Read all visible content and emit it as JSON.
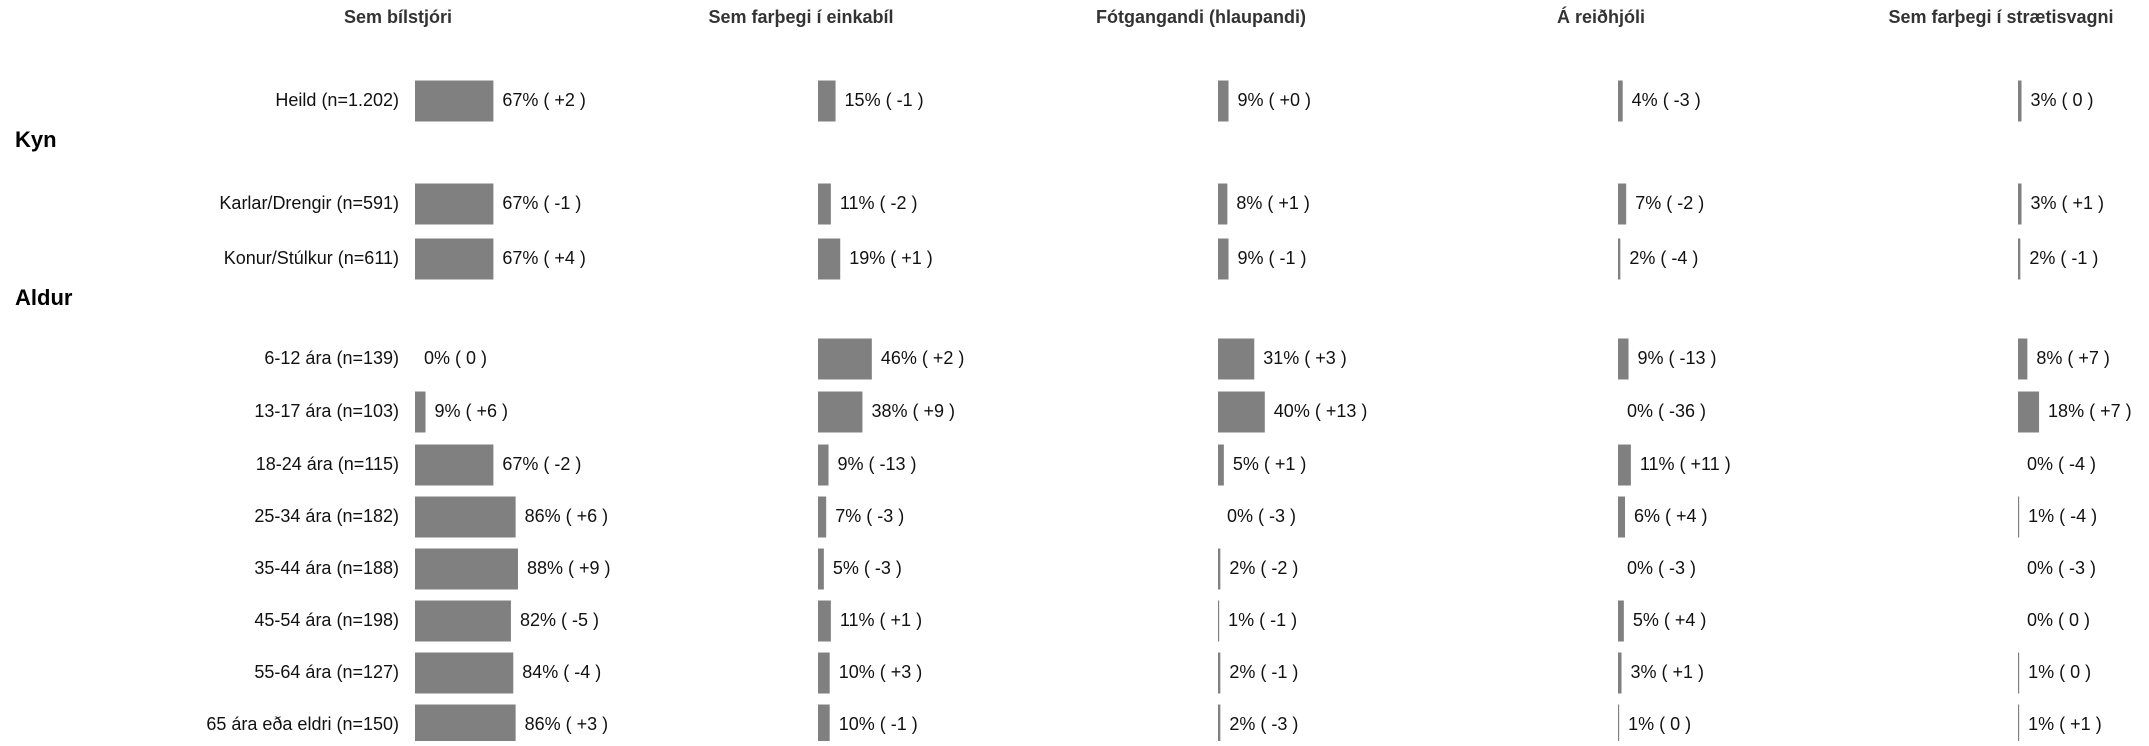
{
  "chart_data": {
    "type": "bar",
    "xlim": [
      0,
      100
    ],
    "categories": [
      "Heild (n=1.202)",
      {
        "group": "Kyn"
      },
      "Karlar/Drengir (n=591)",
      "Konur/Stúlkur (n=611)",
      {
        "group": "Aldur"
      },
      "6-12 ára (n=139)",
      "13-17 ára (n=103)",
      "18-24 ára (n=115)",
      "25-34 ára (n=182)",
      "35-44 ára (n=188)",
      "45-54 ára (n=198)",
      "55-64 ára (n=127)",
      "65 ára eða eldri (n=150)"
    ],
    "series": [
      {
        "name": "Sem bílstjóri",
        "color": "#808080",
        "values": [
          67,
          null,
          67,
          67,
          null,
          0,
          9,
          67,
          86,
          88,
          82,
          84,
          86
        ],
        "value_labels": [
          "67% ( +2 )",
          null,
          "67% ( -1 )",
          "67% ( +4 )",
          null,
          "0% ( 0 )",
          "9% ( +6 )",
          "67% ( -2 )",
          "86% ( +6 )",
          "88% ( +9 )",
          "82% ( -5 )",
          "84% ( -4 )",
          "86% ( +3 )"
        ]
      },
      {
        "name": "Sem farþegi í einkabíl",
        "color": "#808080",
        "values": [
          15,
          null,
          11,
          19,
          null,
          46,
          38,
          9,
          7,
          5,
          11,
          10,
          10
        ],
        "value_labels": [
          "15% ( -1 )",
          null,
          "11% ( -2 )",
          "19% ( +1 )",
          null,
          "46% ( +2 )",
          "38% ( +9 )",
          "9% ( -13 )",
          "7% ( -3 )",
          "5% ( -3 )",
          "11% ( +1 )",
          "10% ( +3 )",
          "10% ( -1 )"
        ]
      },
      {
        "name": "Fótgangandi (hlaupandi)",
        "color": "#808080",
        "values": [
          9,
          null,
          8,
          9,
          null,
          31,
          40,
          5,
          0,
          2,
          1,
          2,
          2
        ],
        "value_labels": [
          "9% ( +0 )",
          null,
          "8% ( +1 )",
          "9% ( -1 )",
          null,
          "31% ( +3 )",
          "40% ( +13 )",
          "5% ( +1 )",
          "0% ( -3 )",
          "2% ( -2 )",
          "1% ( -1 )",
          "2% ( -1 )",
          "2% ( -3 )"
        ]
      },
      {
        "name": "Á reiðhjóli",
        "color": "#808080",
        "values": [
          4,
          null,
          7,
          2,
          null,
          9,
          0,
          11,
          6,
          0,
          5,
          3,
          1
        ],
        "value_labels": [
          "4% ( -3 )",
          null,
          "7% ( -2 )",
          "2% ( -4 )",
          null,
          "9% ( -13 )",
          "0% ( -36 )",
          "11% ( +11 )",
          "6% ( +4 )",
          "0% ( -3 )",
          "5% ( +4 )",
          "3% ( +1 )",
          "1% ( 0 )"
        ]
      },
      {
        "name": "Sem farþegi í strætisvagni",
        "color": "#808080",
        "values": [
          3,
          null,
          3,
          2,
          null,
          8,
          18,
          0,
          1,
          0,
          0,
          1,
          1
        ],
        "value_labels": [
          "3% ( 0 )",
          null,
          "3% ( +1 )",
          "2% ( -1 )",
          null,
          "8% ( +7 )",
          "18% ( +7 )",
          "0% ( -4 )",
          "1% ( -4 )",
          "0% ( -3 )",
          "0% ( 0 )",
          "1% ( 0 )",
          "1% ( +1 )"
        ]
      }
    ]
  }
}
